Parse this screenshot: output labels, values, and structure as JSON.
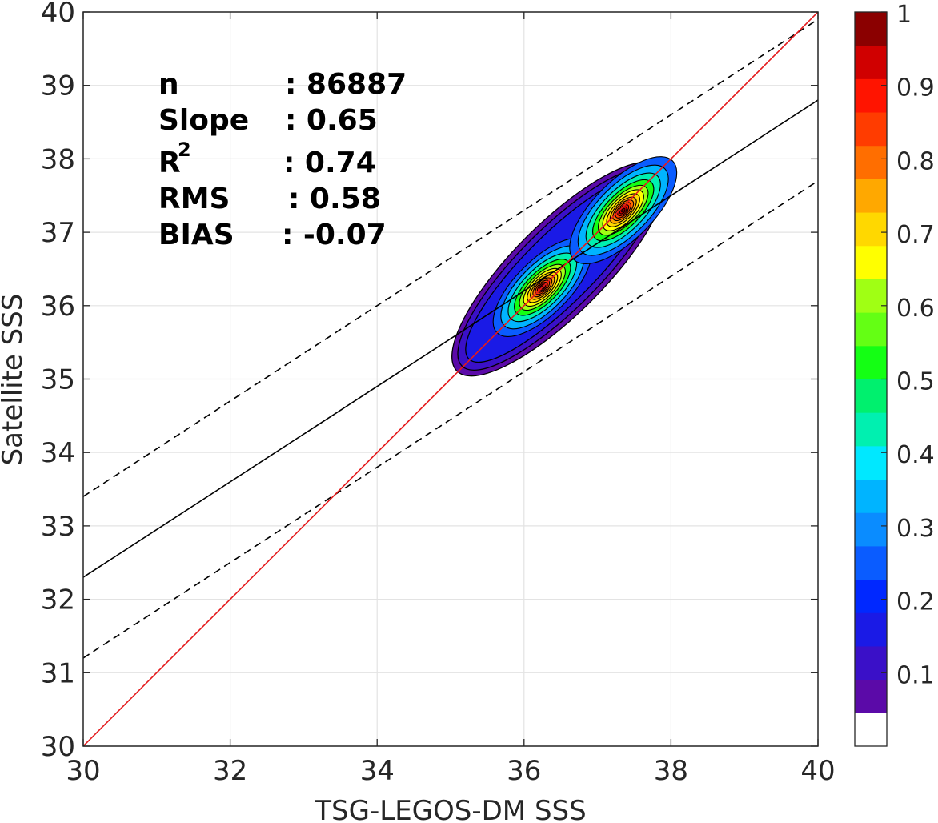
{
  "chart_data": {
    "type": "contour-scatter",
    "xlabel": "TSG-LEGOS-DM SSS",
    "ylabel": "Satellite SSS",
    "xlim": [
      30,
      40
    ],
    "ylim": [
      30,
      40
    ],
    "x_ticks": [
      "30",
      "32",
      "34",
      "36",
      "38",
      "40"
    ],
    "y_ticks": [
      "30",
      "31",
      "32",
      "33",
      "34",
      "35",
      "36",
      "37",
      "38",
      "39",
      "40"
    ],
    "grid": true,
    "stats": {
      "n_label": "n",
      "n_value": ": 86887",
      "slope_label": "Slope",
      "slope_value": ": 0.65",
      "r2_label": "R",
      "r2_sup": "2",
      "r2_value": ": 0.74",
      "rms_label": "RMS",
      "rms_value": ": 0.58",
      "bias_label": "BIAS",
      "bias_value": ": -0.07"
    },
    "lines": {
      "identity": {
        "color": "#e41a1c",
        "x": [
          30,
          40
        ],
        "y": [
          30,
          40
        ]
      },
      "regression": {
        "color": "#000000",
        "x": [
          30,
          40
        ],
        "y": [
          32.3,
          38.8
        ]
      },
      "upper_bound": {
        "color": "#000000",
        "dashed": true,
        "x": [
          30,
          40
        ],
        "y": [
          33.4,
          39.9
        ]
      },
      "lower_bound": {
        "color": "#000000",
        "dashed": true,
        "x": [
          30,
          40
        ],
        "y": [
          31.2,
          37.7
        ]
      }
    },
    "density": {
      "peaks": [
        {
          "x": 36.25,
          "y": 36.25,
          "value": 1.0
        },
        {
          "x": 37.35,
          "y": 37.3,
          "value": 1.0
        }
      ],
      "outer_extent_x": [
        35.1,
        37.85
      ],
      "outer_extent_y": [
        35.15,
        37.85
      ]
    },
    "colorbar": {
      "range": [
        0,
        1
      ],
      "ticks": [
        "0.1",
        "0.2",
        "0.3",
        "0.4",
        "0.5",
        "0.6",
        "0.7",
        "0.8",
        "0.9",
        "1"
      ],
      "levels": [
        "#ffffff",
        "#5b0aa8",
        "#3a10c8",
        "#1a1ae6",
        "#0028ff",
        "#0a5cff",
        "#0a8cff",
        "#00b4ff",
        "#00e8ff",
        "#00f0b0",
        "#00f06e",
        "#14ff14",
        "#64ff14",
        "#a0ff14",
        "#ffff00",
        "#ffd800",
        "#ffa800",
        "#ff6e00",
        "#ff3c00",
        "#ff1400",
        "#d00000",
        "#8b0000"
      ]
    }
  }
}
